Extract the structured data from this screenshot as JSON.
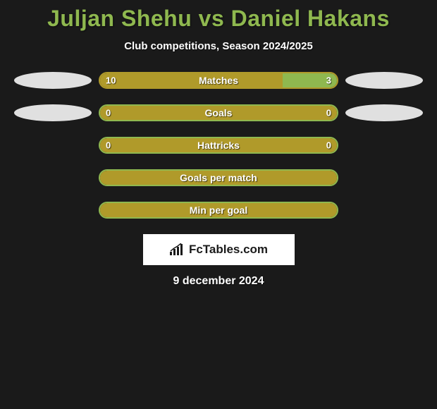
{
  "title": "Juljan Shehu vs Daniel Hakans",
  "subtitle": "Club competitions, Season 2024/2025",
  "date": "9 december 2024",
  "branding": "FcTables.com",
  "colors": {
    "title": "#8fb84f",
    "bar_fill": "#b09a2a",
    "bar_alt": "#8fb84f",
    "bar_border_green": "#8fb84f",
    "ellipse": "#e0e0e0",
    "text": "#ffffff",
    "background": "#1a1a1a"
  },
  "rows": [
    {
      "label": "Matches",
      "left_value": "10",
      "right_value": "3",
      "left_width": 77,
      "right_width": 23,
      "left_color": "#b09a2a",
      "right_color": "#8fb84f",
      "border_color": "#b09a2a",
      "show_ellipse_left": true,
      "show_ellipse_right": true
    },
    {
      "label": "Goals",
      "left_value": "0",
      "right_value": "0",
      "left_width": 100,
      "right_width": 0,
      "left_color": "#b09a2a",
      "right_color": "#8fb84f",
      "border_color": "#8fb84f",
      "show_ellipse_left": true,
      "show_ellipse_right": true
    },
    {
      "label": "Hattricks",
      "left_value": "0",
      "right_value": "0",
      "left_width": 100,
      "right_width": 0,
      "left_color": "#b09a2a",
      "right_color": "#8fb84f",
      "border_color": "#8fb84f",
      "show_ellipse_left": false,
      "show_ellipse_right": false
    },
    {
      "label": "Goals per match",
      "left_value": "",
      "right_value": "",
      "left_width": 100,
      "right_width": 0,
      "left_color": "#b09a2a",
      "right_color": "#8fb84f",
      "border_color": "#8fb84f",
      "show_ellipse_left": false,
      "show_ellipse_right": false
    },
    {
      "label": "Min per goal",
      "left_value": "",
      "right_value": "",
      "left_width": 100,
      "right_width": 0,
      "left_color": "#b09a2a",
      "right_color": "#8fb84f",
      "border_color": "#8fb84f",
      "show_ellipse_left": false,
      "show_ellipse_right": false
    }
  ]
}
